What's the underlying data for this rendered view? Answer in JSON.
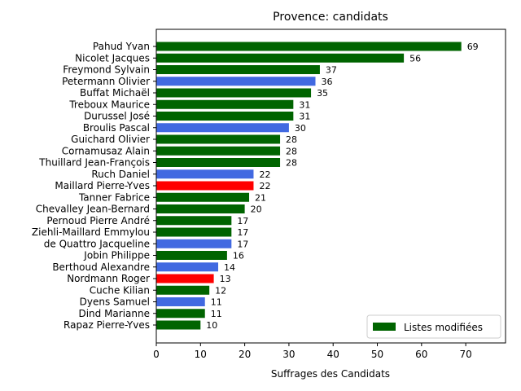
{
  "chart_data": {
    "type": "bar",
    "orientation": "horizontal",
    "title": "Provence: candidats",
    "xlabel": "Suffrages des Candidats",
    "ylabel": "",
    "xlim": [
      0,
      79
    ],
    "xticks": [
      0,
      10,
      20,
      30,
      40,
      50,
      60,
      70
    ],
    "grid": false,
    "legend": {
      "placement": "lower-right",
      "entries": [
        {
          "label": "Listes modifiées",
          "color": "#006400"
        }
      ]
    },
    "colors": {
      "green": "#006400",
      "blue": "#4169e1",
      "red": "#ff0000"
    },
    "bars": [
      {
        "name": "Pahud Yvan",
        "value": 69,
        "color": "green"
      },
      {
        "name": "Nicolet Jacques",
        "value": 56,
        "color": "green"
      },
      {
        "name": "Freymond Sylvain",
        "value": 37,
        "color": "green"
      },
      {
        "name": "Petermann Olivier",
        "value": 36,
        "color": "blue"
      },
      {
        "name": "Buffat Michaël",
        "value": 35,
        "color": "green"
      },
      {
        "name": "Treboux Maurice",
        "value": 31,
        "color": "green"
      },
      {
        "name": "Durussel José",
        "value": 31,
        "color": "green"
      },
      {
        "name": "Broulis Pascal",
        "value": 30,
        "color": "blue"
      },
      {
        "name": "Guichard Olivier",
        "value": 28,
        "color": "green"
      },
      {
        "name": "Cornamusaz Alain",
        "value": 28,
        "color": "green"
      },
      {
        "name": "Thuillard Jean-François",
        "value": 28,
        "color": "green"
      },
      {
        "name": "Ruch Daniel",
        "value": 22,
        "color": "blue"
      },
      {
        "name": "Maillard Pierre-Yves",
        "value": 22,
        "color": "red"
      },
      {
        "name": "Tanner Fabrice",
        "value": 21,
        "color": "green"
      },
      {
        "name": "Chevalley Jean-Bernard",
        "value": 20,
        "color": "green"
      },
      {
        "name": "Pernoud Pierre André",
        "value": 17,
        "color": "green"
      },
      {
        "name": "Ziehli-Maillard Emmylou",
        "value": 17,
        "color": "green"
      },
      {
        "name": "de Quattro Jacqueline",
        "value": 17,
        "color": "blue"
      },
      {
        "name": "Jobin Philippe",
        "value": 16,
        "color": "green"
      },
      {
        "name": "Berthoud Alexandre",
        "value": 14,
        "color": "blue"
      },
      {
        "name": "Nordmann Roger",
        "value": 13,
        "color": "red"
      },
      {
        "name": "Cuche Kilian",
        "value": 12,
        "color": "green"
      },
      {
        "name": "Dyens Samuel",
        "value": 11,
        "color": "blue"
      },
      {
        "name": "Dind Marianne",
        "value": 11,
        "color": "green"
      },
      {
        "name": "Rapaz Pierre-Yves",
        "value": 10,
        "color": "green"
      }
    ]
  }
}
